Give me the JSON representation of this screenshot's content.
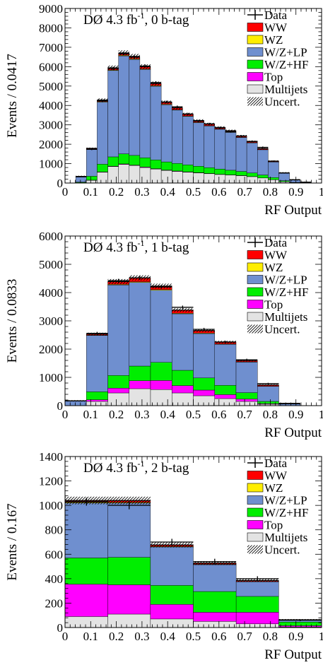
{
  "chart_data": [
    {
      "type": "bar",
      "stacked": true,
      "title": "DØ 4.3 fb-1, 0 b-tag",
      "xlabel": "RF Output",
      "ylabel": "Events / 0.0417",
      "xlim": [
        0,
        1
      ],
      "ylim": [
        0,
        9000
      ],
      "xticks": [
        "0",
        "0.1",
        "0.2",
        "0.3",
        "0.4",
        "0.5",
        "0.6",
        "0.7",
        "0.8",
        "0.9",
        "1"
      ],
      "yticks": [
        "0",
        "1000",
        "2000",
        "3000",
        "4000",
        "5000",
        "6000",
        "7000",
        "8000",
        "9000"
      ],
      "bin_edges": [
        0.0,
        0.0417,
        0.0833,
        0.125,
        0.1667,
        0.2083,
        0.25,
        0.2917,
        0.3333,
        0.375,
        0.4167,
        0.4583,
        0.5,
        0.5417,
        0.5833,
        0.625,
        0.6667,
        0.7083,
        0.75,
        0.7917,
        0.8333,
        0.875,
        0.9167,
        0.9583,
        1.0
      ],
      "series": [
        {
          "name": "Multijets",
          "color": "#e3e3e3",
          "values": [
            0,
            20,
            140,
            560,
            850,
            960,
            900,
            800,
            720,
            650,
            600,
            560,
            520,
            480,
            440,
            410,
            380,
            330,
            260,
            170,
            70,
            20,
            5,
            0
          ]
        },
        {
          "name": "Top",
          "color": "#ff00ff",
          "values": [
            0,
            0,
            10,
            15,
            20,
            25,
            25,
            25,
            22,
            20,
            20,
            18,
            16,
            14,
            12,
            10,
            9,
            8,
            6,
            4,
            2,
            1,
            0,
            0
          ]
        },
        {
          "name": "W/Z+HF",
          "color": "#00ee00",
          "values": [
            0,
            30,
            200,
            400,
            480,
            520,
            500,
            480,
            450,
            420,
            390,
            360,
            330,
            300,
            270,
            240,
            210,
            180,
            150,
            110,
            50,
            15,
            3,
            0
          ]
        },
        {
          "name": "W/Z+LP",
          "color": "#6f8fcf",
          "values": [
            0,
            260,
            1380,
            3200,
            4450,
            5050,
            4950,
            4550,
            3800,
            2950,
            2750,
            2500,
            2250,
            2150,
            2050,
            1950,
            1750,
            1550,
            1300,
            800,
            380,
            120,
            30,
            0
          ]
        },
        {
          "name": "WZ",
          "color": "#ffee00",
          "values": [
            0,
            5,
            15,
            25,
            30,
            32,
            32,
            30,
            28,
            26,
            24,
            22,
            20,
            19,
            18,
            17,
            16,
            14,
            12,
            8,
            4,
            2,
            0,
            0
          ]
        },
        {
          "name": "WW",
          "color": "#ff0000",
          "values": [
            0,
            25,
            45,
            80,
            110,
            120,
            120,
            115,
            110,
            100,
            95,
            90,
            85,
            80,
            75,
            70,
            65,
            60,
            50,
            35,
            20,
            8,
            2,
            0
          ]
        }
      ],
      "data_points": [
        0,
        340,
        1740,
        4240,
        5910,
        6660,
        6490,
        6030,
        5180,
        4180,
        3930,
        3560,
        3200,
        3050,
        2850,
        2650,
        2420,
        2150,
        1840,
        1130,
        520,
        170,
        40,
        0
      ],
      "uncertainty_frac": 0.02,
      "legend": [
        "Data",
        "WW",
        "WZ",
        "W/Z+LP",
        "W/Z+HF",
        "Top",
        "Multijets",
        "Uncert."
      ],
      "legend_position": "top-right",
      "grid": false
    },
    {
      "type": "bar",
      "stacked": true,
      "title": "DØ 4.3 fb-1, 1 b-tag",
      "xlabel": "RF Output",
      "ylabel": "Events / 0.0833",
      "xlim": [
        0,
        1
      ],
      "ylim": [
        0,
        6000
      ],
      "xticks": [
        "0",
        "0.1",
        "0.2",
        "0.3",
        "0.4",
        "0.5",
        "0.6",
        "0.7",
        "0.8",
        "0.9",
        "1"
      ],
      "yticks": [
        "0",
        "1000",
        "2000",
        "3000",
        "4000",
        "5000",
        "6000"
      ],
      "bin_edges": [
        0.0,
        0.0833,
        0.1667,
        0.25,
        0.3333,
        0.4167,
        0.5,
        0.5833,
        0.6667,
        0.75,
        0.8333,
        0.9167,
        1.0
      ],
      "series": [
        {
          "name": "Multijets",
          "color": "#e3e3e3",
          "values": [
            0,
            150,
            450,
            600,
            570,
            450,
            350,
            250,
            150,
            50,
            0,
            0
          ]
        },
        {
          "name": "Top",
          "color": "#ff00ff",
          "values": [
            0,
            60,
            170,
            280,
            320,
            260,
            200,
            140,
            80,
            20,
            0,
            0
          ]
        },
        {
          "name": "W/Z+HF",
          "color": "#00ee00",
          "values": [
            0,
            280,
            450,
            520,
            640,
            540,
            430,
            330,
            230,
            80,
            0,
            0
          ]
        },
        {
          "name": "W/Z+LP",
          "color": "#6f8fcf",
          "values": [
            170,
            1990,
            3200,
            2960,
            2550,
            2000,
            1570,
            1450,
            1080,
            530,
            60,
            0
          ]
        },
        {
          "name": "WZ",
          "color": "#ffee00",
          "values": [
            0,
            10,
            20,
            25,
            25,
            20,
            18,
            15,
            12,
            8,
            2,
            0
          ]
        },
        {
          "name": "WW",
          "color": "#ff0000",
          "values": [
            0,
            40,
            100,
            135,
            125,
            110,
            90,
            65,
            48,
            42,
            8,
            0
          ]
        }
      ],
      "data_points": [
        170,
        2560,
        4420,
        4520,
        4200,
        3480,
        2700,
        2250,
        1620,
        780,
        80,
        0
      ],
      "uncertainty_frac": 0.02,
      "legend": [
        "Data",
        "WW",
        "WZ",
        "W/Z+LP",
        "W/Z+HF",
        "Top",
        "Multijets",
        "Uncert."
      ],
      "legend_position": "top-right",
      "grid": false
    },
    {
      "type": "bar",
      "stacked": true,
      "title": "DØ 4.3 fb-1, 2 b-tag",
      "xlabel": "RF Output",
      "ylabel": "Events / 0.167",
      "xlim": [
        0,
        1
      ],
      "ylim": [
        0,
        1400
      ],
      "xticks": [
        "0",
        "0.1",
        "0.2",
        "0.3",
        "0.4",
        "0.5",
        "0.6",
        "0.7",
        "0.8",
        "0.9",
        "1"
      ],
      "yticks": [
        "0",
        "200",
        "400",
        "600",
        "800",
        "1000",
        "1200",
        "1400"
      ],
      "bin_edges": [
        0.0,
        0.167,
        0.333,
        0.5,
        0.667,
        0.833,
        1.0
      ],
      "series": [
        {
          "name": "Multijets",
          "color": "#e3e3e3",
          "values": [
            90,
            110,
            70,
            50,
            30,
            5
          ]
        },
        {
          "name": "Top",
          "color": "#ff00ff",
          "values": [
            265,
            240,
            120,
            75,
            95,
            10
          ]
        },
        {
          "name": "W/Z+HF",
          "color": "#00ee00",
          "values": [
            215,
            225,
            155,
            170,
            130,
            30
          ]
        },
        {
          "name": "W/Z+LP",
          "color": "#6f8fcf",
          "values": [
            450,
            445,
            315,
            220,
            120,
            15
          ]
        },
        {
          "name": "WZ",
          "color": "#ffee00",
          "values": [
            5,
            5,
            4,
            3,
            2,
            1
          ]
        },
        {
          "name": "WW",
          "color": "#ff0000",
          "values": [
            15,
            15,
            12,
            10,
            8,
            3
          ]
        }
      ],
      "data_points": [
        1030,
        1000,
        700,
        540,
        400,
        60
      ],
      "uncertainty_frac": 0.03,
      "legend": [
        "Data",
        "WW",
        "WZ",
        "W/Z+LP",
        "W/Z+HF",
        "Top",
        "Multijets",
        "Uncert."
      ],
      "legend_position": "top-right",
      "grid": false
    }
  ]
}
